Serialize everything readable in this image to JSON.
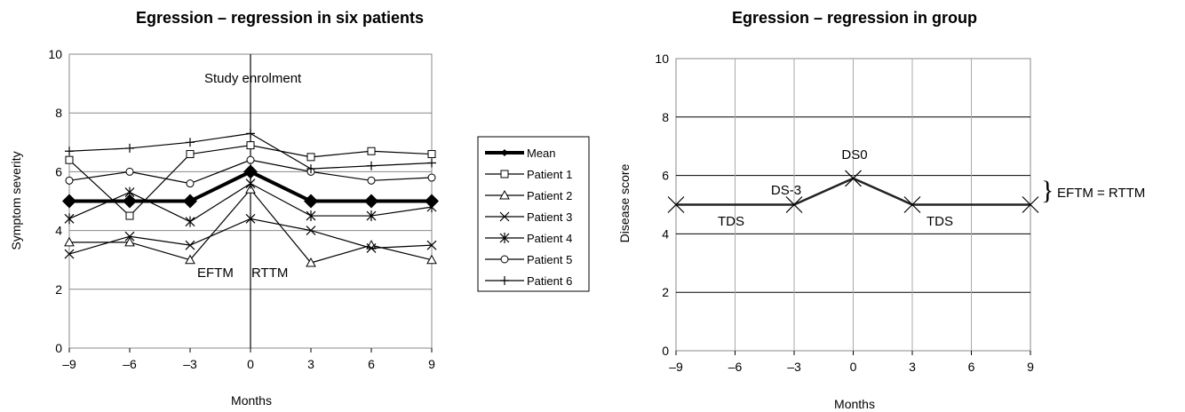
{
  "chart_data": [
    {
      "type": "line",
      "title": "Egression – regression in six patients",
      "xlabel": "Months",
      "ylabel": "Symptom severity",
      "x": [
        -9,
        -6,
        -3,
        0,
        3,
        6,
        9
      ],
      "xticks": [
        "–9",
        "–6",
        "–3",
        "0",
        "3",
        "6",
        "9"
      ],
      "yticks": [
        "0",
        "2",
        "4",
        "6",
        "8",
        "10"
      ],
      "xlim": [
        -9,
        9
      ],
      "ylim": [
        0,
        10
      ],
      "grid": "horizontal",
      "legend_position": "right",
      "series": [
        {
          "name": "Mean",
          "marker": "diamond",
          "bold": true,
          "values": [
            5.0,
            5.0,
            5.0,
            6.0,
            5.0,
            5.0,
            5.0
          ]
        },
        {
          "name": "Patient 1",
          "marker": "square",
          "values": [
            6.4,
            4.5,
            6.6,
            6.9,
            6.5,
            6.7,
            6.6
          ]
        },
        {
          "name": "Patient 2",
          "marker": "triangle",
          "values": [
            3.6,
            3.6,
            3.0,
            5.4,
            2.9,
            3.5,
            3.0
          ]
        },
        {
          "name": "Patient 3",
          "marker": "x",
          "values": [
            3.2,
            3.8,
            3.5,
            4.4,
            4.0,
            3.4,
            3.5
          ]
        },
        {
          "name": "Patient 4",
          "marker": "star",
          "values": [
            4.4,
            5.3,
            4.3,
            5.6,
            4.5,
            4.5,
            4.8
          ]
        },
        {
          "name": "Patient 5",
          "marker": "circle",
          "values": [
            5.7,
            6.0,
            5.6,
            6.4,
            6.0,
            5.7,
            5.8
          ]
        },
        {
          "name": "Patient 6",
          "marker": "plus",
          "values": [
            6.7,
            6.8,
            7.0,
            7.3,
            6.1,
            6.2,
            6.3
          ]
        }
      ],
      "vline_x": 0,
      "annotations": {
        "enrolment": "Study enrolment",
        "eftm": "EFTM",
        "rttm": "RTTM"
      }
    },
    {
      "type": "line",
      "title": "Egression – regression in group",
      "xlabel": "Months",
      "ylabel": "Disease score",
      "x": [
        -9,
        -3,
        0,
        3,
        9
      ],
      "xticks": [
        "–9",
        "–6",
        "–3",
        "0",
        "3",
        "6",
        "9"
      ],
      "yticks": [
        "0",
        "2",
        "4",
        "6",
        "8",
        "10"
      ],
      "xlim": [
        -9,
        9
      ],
      "ylim": [
        0,
        10
      ],
      "grid": "both",
      "series": [
        {
          "marker": "x",
          "values": [
            5.0,
            5.0,
            5.9,
            5.0,
            5.0
          ]
        }
      ],
      "annotations": {
        "tds_left": "TDS",
        "tds_right": "TDS",
        "ds3": "DS-3",
        "ds0": "DS0",
        "brace": "}",
        "brace_label": "EFTM = RTTM"
      }
    }
  ]
}
